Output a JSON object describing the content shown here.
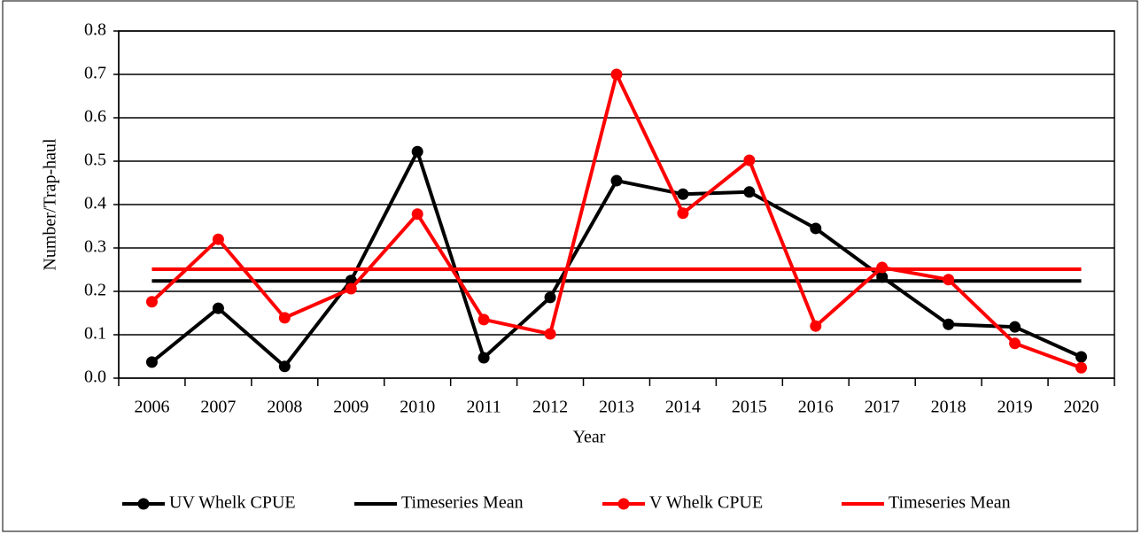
{
  "chart_data": {
    "type": "line",
    "x_label": "Year",
    "y_label": "Number/Trap-haul",
    "categories": [
      "2006",
      "2007",
      "2008",
      "2009",
      "2010",
      "2011",
      "2012",
      "2013",
      "2014",
      "2015",
      "2016",
      "2017",
      "2018",
      "2019",
      "2020"
    ],
    "series": [
      {
        "name": "UV Whelk CPUE",
        "color": "#000000",
        "marker": true,
        "values": [
          0.037,
          0.161,
          0.027,
          0.225,
          0.522,
          0.047,
          0.186,
          0.455,
          0.424,
          0.429,
          0.345,
          0.233,
          0.124,
          0.118,
          0.049
        ]
      },
      {
        "name": "Timeseries Mean",
        "color": "#000000",
        "marker": false,
        "values": [
          0.224,
          0.224,
          0.224,
          0.224,
          0.224,
          0.224,
          0.224,
          0.224,
          0.224,
          0.224,
          0.224,
          0.224,
          0.224,
          0.224,
          0.224
        ]
      },
      {
        "name": "V Whelk CPUE",
        "color": "#ff0000",
        "marker": true,
        "values": [
          0.176,
          0.32,
          0.139,
          0.206,
          0.378,
          0.135,
          0.102,
          0.7,
          0.38,
          0.502,
          0.12,
          0.255,
          0.227,
          0.08,
          0.024
        ]
      },
      {
        "name": "Timeseries Mean",
        "color": "#ff0000",
        "marker": false,
        "values": [
          0.251,
          0.251,
          0.251,
          0.251,
          0.251,
          0.251,
          0.251,
          0.251,
          0.251,
          0.251,
          0.251,
          0.251,
          0.251,
          0.251,
          0.251
        ]
      }
    ],
    "ylim": [
      0,
      0.8
    ],
    "yticks": [
      {
        "value": 0,
        "label": "0.0"
      },
      0.1,
      0.2,
      0.3,
      0.4,
      0.5,
      0.6,
      0.7,
      0.8
    ],
    "grid": true,
    "legend": "bottom"
  }
}
